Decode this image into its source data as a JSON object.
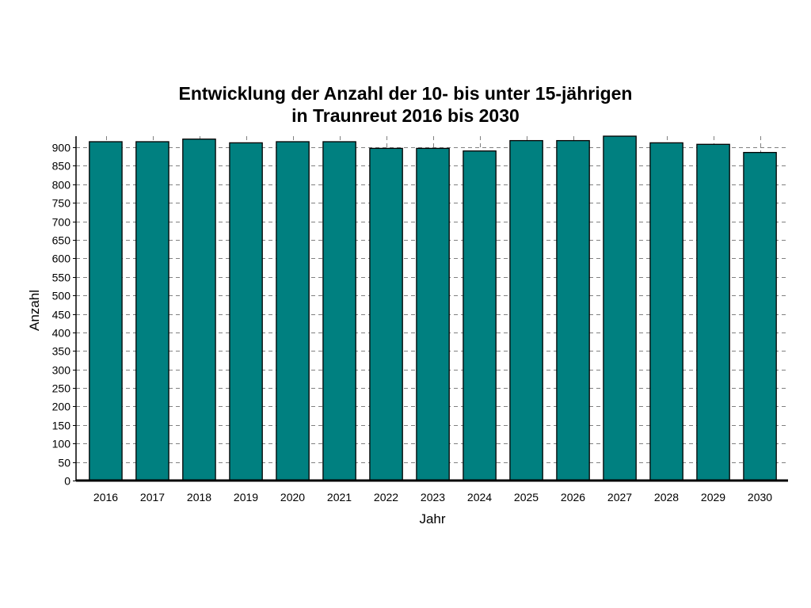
{
  "chart_data": {
    "type": "bar",
    "title": "Entwicklung der Anzahl der 10- bis unter 15-jährigen",
    "subtitle": "in Traunreut 2016 bis 2030",
    "xlabel": "Jahr",
    "ylabel": "Anzahl",
    "categories": [
      "2016",
      "2017",
      "2018",
      "2019",
      "2020",
      "2021",
      "2022",
      "2023",
      "2024",
      "2025",
      "2026",
      "2027",
      "2028",
      "2029",
      "2030"
    ],
    "values": [
      915,
      915,
      922,
      912,
      915,
      915,
      897,
      897,
      890,
      918,
      918,
      935,
      912,
      908,
      886
    ],
    "ylim": [
      0,
      930
    ],
    "yticks": [
      0,
      50,
      100,
      150,
      200,
      250,
      300,
      350,
      400,
      450,
      500,
      550,
      600,
      650,
      700,
      750,
      800,
      850,
      900
    ],
    "grid": true,
    "legend": "none",
    "colors": {
      "bar": "#008080",
      "bar_edge": "#000000",
      "grid": "#808080"
    }
  }
}
